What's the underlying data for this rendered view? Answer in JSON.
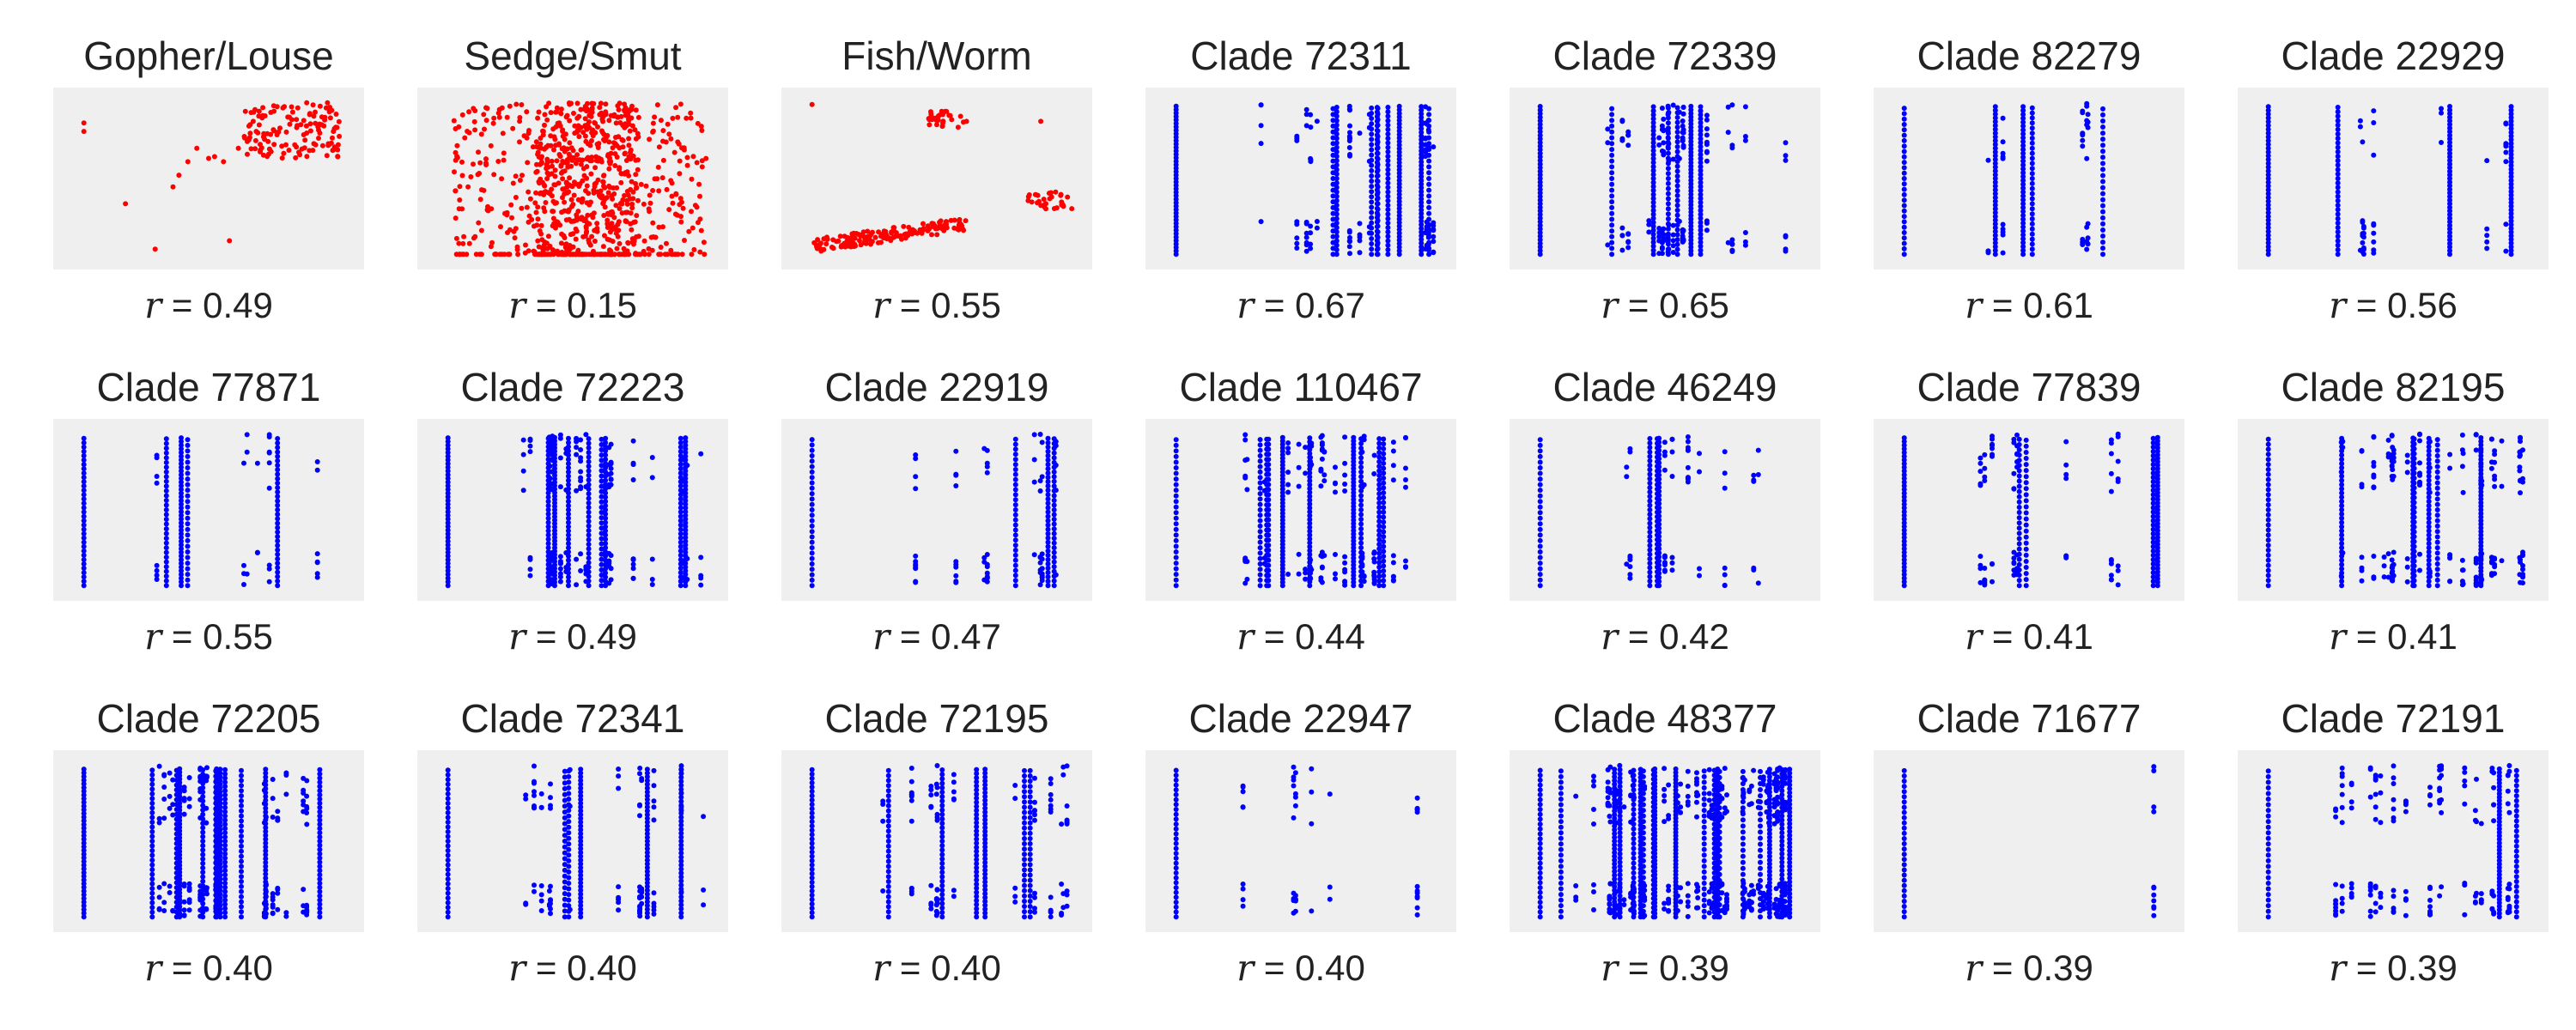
{
  "figure": {
    "r_symbol": "r",
    "r_eq": " = "
  },
  "colors": {
    "host": "#ff0000",
    "clade": "#0000ff",
    "panel_bg": "#efefef"
  },
  "chart_data": [
    {
      "type": "scatter",
      "title": "Gopher/Louse",
      "r": "0.49",
      "color": "#ff0000",
      "pattern": "host-gopher",
      "points": [
        [
          0.08,
          0.83
        ],
        [
          0.08,
          0.78
        ],
        [
          0.22,
          0.35
        ],
        [
          0.32,
          0.08
        ],
        [
          0.38,
          0.45
        ],
        [
          0.4,
          0.52
        ],
        [
          0.43,
          0.6
        ],
        [
          0.46,
          0.68
        ],
        [
          0.5,
          0.62
        ],
        [
          0.52,
          0.63
        ],
        [
          0.55,
          0.6
        ],
        [
          0.57,
          0.13
        ],
        [
          0.6,
          0.68
        ],
        [
          0.62,
          0.75
        ],
        [
          0.64,
          0.82
        ],
        [
          0.66,
          0.78
        ],
        [
          0.68,
          0.86
        ],
        [
          0.7,
          0.72
        ],
        [
          0.72,
          0.9
        ],
        [
          0.74,
          0.8
        ],
        [
          0.76,
          0.7
        ],
        [
          0.78,
          0.85
        ],
        [
          0.8,
          0.92
        ],
        [
          0.82,
          0.76
        ],
        [
          0.84,
          0.88
        ],
        [
          0.86,
          0.7
        ],
        [
          0.88,
          0.82
        ],
        [
          0.9,
          0.95
        ],
        [
          0.92,
          0.78
        ],
        [
          0.63,
          0.72
        ],
        [
          0.67,
          0.9
        ],
        [
          0.71,
          0.66
        ],
        [
          0.75,
          0.92
        ],
        [
          0.79,
          0.7
        ],
        [
          0.83,
          0.95
        ],
        [
          0.87,
          0.74
        ],
        [
          0.91,
          0.86
        ],
        [
          0.65,
          0.84
        ],
        [
          0.73,
          0.76
        ],
        [
          0.81,
          0.82
        ]
      ]
    },
    {
      "type": "scatter",
      "title": "Sedge/Smut",
      "r": "0.15",
      "color": "#ff0000",
      "pattern": "host-sedge",
      "points": []
    },
    {
      "type": "scatter",
      "title": "Fish/Worm",
      "r": "0.55",
      "color": "#ff0000",
      "pattern": "host-fish",
      "points": [
        [
          0.08,
          0.94
        ],
        [
          0.85,
          0.84
        ],
        [
          0.48,
          0.86
        ],
        [
          0.5,
          0.82
        ],
        [
          0.52,
          0.88
        ],
        [
          0.55,
          0.85
        ],
        [
          0.58,
          0.87
        ],
        [
          0.6,
          0.84
        ],
        [
          0.82,
          0.36
        ],
        [
          0.84,
          0.4
        ],
        [
          0.86,
          0.34
        ],
        [
          0.88,
          0.38
        ],
        [
          0.9,
          0.42
        ],
        [
          0.92,
          0.36
        ],
        [
          0.94,
          0.39
        ]
      ]
    },
    {
      "type": "scatter",
      "title": "Clade 72311",
      "r": "0.67",
      "color": "#0000ff",
      "pattern": "dense"
    },
    {
      "type": "scatter",
      "title": "Clade 72339",
      "r": "0.65",
      "color": "#0000ff",
      "pattern": "dense"
    },
    {
      "type": "scatter",
      "title": "Clade 82279",
      "r": "0.61",
      "color": "#0000ff",
      "pattern": "sparse"
    },
    {
      "type": "scatter",
      "title": "Clade 22929",
      "r": "0.56",
      "color": "#0000ff",
      "pattern": "sparse"
    },
    {
      "type": "scatter",
      "title": "Clade 77871",
      "r": "0.55",
      "color": "#0000ff",
      "pattern": "sparse"
    },
    {
      "type": "scatter",
      "title": "Clade 72223",
      "r": "0.49",
      "color": "#0000ff",
      "pattern": "dense"
    },
    {
      "type": "scatter",
      "title": "Clade 22919",
      "r": "0.47",
      "color": "#0000ff",
      "pattern": "sparse"
    },
    {
      "type": "scatter",
      "title": "Clade 110467",
      "r": "0.44",
      "color": "#0000ff",
      "pattern": "dense"
    },
    {
      "type": "scatter",
      "title": "Clade 46249",
      "r": "0.42",
      "color": "#0000ff",
      "pattern": "sparse"
    },
    {
      "type": "scatter",
      "title": "Clade 77839",
      "r": "0.41",
      "color": "#0000ff",
      "pattern": "sparse"
    },
    {
      "type": "scatter",
      "title": "Clade 82195",
      "r": "0.41",
      "color": "#0000ff",
      "pattern": "dense"
    },
    {
      "type": "scatter",
      "title": "Clade 72205",
      "r": "0.40",
      "color": "#0000ff",
      "pattern": "dense"
    },
    {
      "type": "scatter",
      "title": "Clade 72341",
      "r": "0.40",
      "color": "#0000ff",
      "pattern": "dense"
    },
    {
      "type": "scatter",
      "title": "Clade 72195",
      "r": "0.40",
      "color": "#0000ff",
      "pattern": "dense"
    },
    {
      "type": "scatter",
      "title": "Clade 22947",
      "r": "0.40",
      "color": "#0000ff",
      "pattern": "sparse"
    },
    {
      "type": "scatter",
      "title": "Clade 48377",
      "r": "0.39",
      "color": "#0000ff",
      "pattern": "very-dense"
    },
    {
      "type": "scatter",
      "title": "Clade 71677",
      "r": "0.39",
      "color": "#0000ff",
      "pattern": "two-cols"
    },
    {
      "type": "scatter",
      "title": "Clade 72191",
      "r": "0.39",
      "color": "#0000ff",
      "pattern": "dense"
    }
  ]
}
